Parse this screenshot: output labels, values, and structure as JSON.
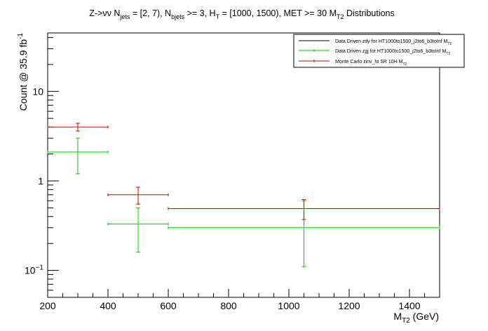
{
  "chart_data": {
    "type": "scatter",
    "title": {
      "pre": "Z->νν N",
      "sub_jets": "jets",
      "mid1": " = [2, 7), N",
      "sub_bjets": "bjets",
      "mid2": " >= 3, H",
      "sub_T": "T",
      "mid3": " = [1000, 1500), MET >= 30 M",
      "sub_T2": "T2",
      "post": " Distributions"
    },
    "xlabel": {
      "main": "M",
      "sub": "T2",
      "unit": " (GeV)"
    },
    "ylabel": {
      "main": "Count @ 35.9 fb",
      "sup": "-1"
    },
    "xlim": [
      200,
      1500
    ],
    "ylim": [
      0.05,
      45
    ],
    "yscale": "log",
    "x_ticks": [
      "200",
      "400",
      "600",
      "800",
      "1000",
      "1200",
      "1400"
    ],
    "y_ticks": [
      {
        "value": 10,
        "label": "10"
      },
      {
        "value": 1,
        "label": "1"
      },
      {
        "value": 0.1,
        "label": "10",
        "sup": "−1"
      }
    ],
    "legend": {
      "position": "top-right",
      "entries": [
        {
          "text": "Data Driven zdy for HT1000to1500_j2to6_b3toInf M",
          "sub": "T2",
          "color": "#000000"
        },
        {
          "text": "Data Driven zgj for HT1000to1500_j2to6_b3toInf M",
          "sub": "T2",
          "color": "#00cc00"
        },
        {
          "text": "Monte Carlo zinv_ht SR 10H M",
          "sub": "T2",
          "color": "#cc0000"
        }
      ]
    },
    "series": [
      {
        "name": "Data Driven zgj",
        "color": "#00cc00",
        "points": [
          {
            "x": 300,
            "xlow": 200,
            "xhigh": 400,
            "y": 2.1,
            "ylow": 1.2,
            "yhigh": 3.0
          },
          {
            "x": 500,
            "xlow": 400,
            "xhigh": 600,
            "y": 0.33,
            "ylow": 0.16,
            "yhigh": 0.5
          },
          {
            "x": 1050,
            "xlow": 600,
            "xhigh": 1500,
            "y": 0.3,
            "ylow": 0.11,
            "yhigh": 0.6
          }
        ]
      },
      {
        "name": "Monte Carlo zinv_ht SR 10H",
        "color": "#cc0000",
        "points": [
          {
            "x": 300,
            "xlow": 200,
            "xhigh": 400,
            "y": 4.0,
            "ylow": 3.6,
            "yhigh": 4.4
          },
          {
            "x": 500,
            "xlow": 400,
            "xhigh": 600,
            "y": 0.7,
            "ylow": 0.55,
            "yhigh": 0.85
          },
          {
            "x": 1050,
            "xlow": 600,
            "xhigh": 1500,
            "y": 0.49,
            "ylow": 0.37,
            "yhigh": 0.62
          }
        ]
      }
    ]
  }
}
